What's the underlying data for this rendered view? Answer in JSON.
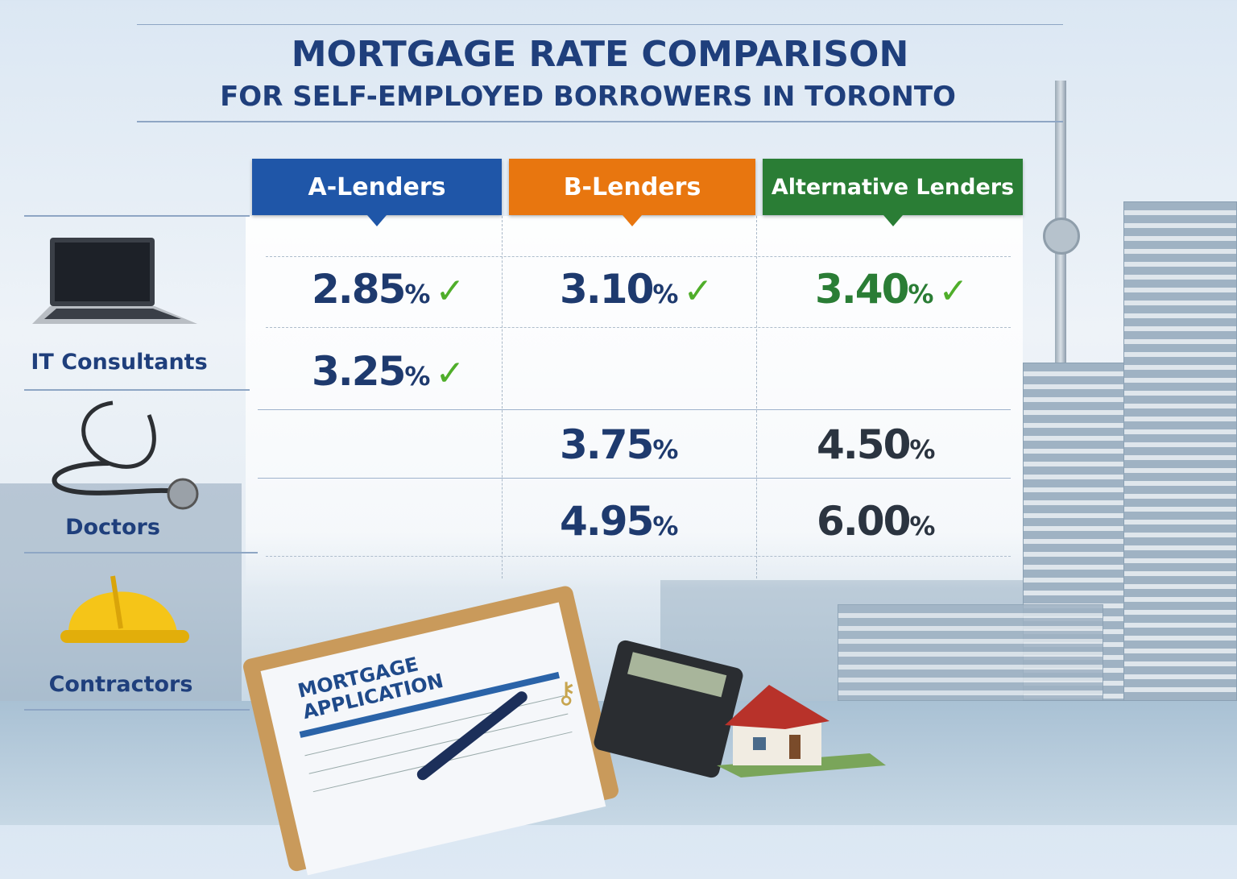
{
  "title": "MORTGAGE RATE COMPARISON",
  "subtitle": "FOR SELF-EMPLOYED BORROWERS IN TORONTO",
  "columns": [
    {
      "label": "A-Lenders",
      "color": "#1f56a8"
    },
    {
      "label": "B-Lenders",
      "color": "#e8760f"
    },
    {
      "label": "Alternative Lenders",
      "color": "#2a7d35"
    }
  ],
  "categories": [
    "IT Consultants",
    "Doctors",
    "Contractors"
  ],
  "rows": [
    [
      "2.85",
      "3.10",
      "3.40"
    ],
    [
      "3.25",
      "",
      ""
    ],
    [
      "",
      "3.75",
      "4.50"
    ],
    [
      "",
      "4.95",
      "6.00"
    ]
  ],
  "percent": "%",
  "check": "✓",
  "clipboard": {
    "line1": "MORTGAGE",
    "line2": "APPLICATION"
  }
}
